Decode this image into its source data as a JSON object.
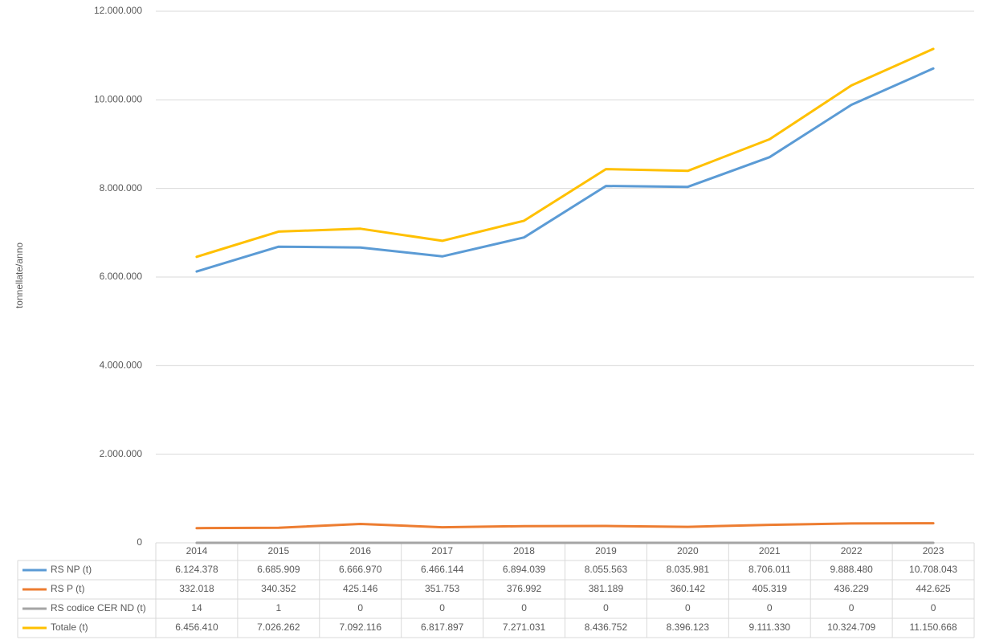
{
  "chart_data": {
    "type": "line",
    "y_label": "tonnellate/anno",
    "categories": [
      "2014",
      "2015",
      "2016",
      "2017",
      "2018",
      "2019",
      "2020",
      "2021",
      "2022",
      "2023"
    ],
    "series": [
      {
        "name": "RS NP (t)",
        "color": "#5b9bd5",
        "values": [
          6124378,
          6685909,
          6666970,
          6466144,
          6894039,
          8055563,
          8035981,
          8706011,
          9888480,
          10708043
        ],
        "value_labels": [
          "6.124.378",
          "6.685.909",
          "6.666.970",
          "6.466.144",
          "6.894.039",
          "8.055.563",
          "8.035.981",
          "8.706.011",
          "9.888.480",
          "10.708.043"
        ]
      },
      {
        "name": "RS P (t)",
        "color": "#ed7d31",
        "values": [
          332018,
          340352,
          425146,
          351753,
          376992,
          381189,
          360142,
          405319,
          436229,
          442625
        ],
        "value_labels": [
          "332.018",
          "340.352",
          "425.146",
          "351.753",
          "376.992",
          "381.189",
          "360.142",
          "405.319",
          "436.229",
          "442.625"
        ]
      },
      {
        "name": "RS codice CER ND (t)",
        "color": "#a5a5a5",
        "values": [
          14,
          1,
          0,
          0,
          0,
          0,
          0,
          0,
          0,
          0
        ]
      },
      {
        "name": "Totale (t)",
        "color": "#ffc000",
        "values": [
          6456410,
          7026262,
          7092116,
          6817897,
          7271031,
          8436752,
          8396123,
          9111330,
          10324709,
          11150668
        ],
        "value_labels": [
          "6.456.410",
          "7.026.262",
          "7.092.116",
          "6.817.897",
          "7.271.031",
          "8.436.752",
          "8.396.123",
          "9.111.330",
          "10.324.709",
          "11.150.668"
        ]
      }
    ],
    "ylim": [
      0,
      12000000
    ],
    "yticks": [
      0,
      {
        "value": 2000000,
        "label": "2.000.000"
      },
      {
        "value": 4000000,
        "label": "4.000.000"
      },
      {
        "value": 6000000,
        "label": "6.000.000"
      },
      {
        "value": 8000000,
        "label": "8.000.000"
      },
      {
        "value": 10000000,
        "label": "10.000.000"
      },
      {
        "value": 12000000,
        "label": "12.000.000"
      }
    ],
    "grid": true,
    "data_table": true
  }
}
